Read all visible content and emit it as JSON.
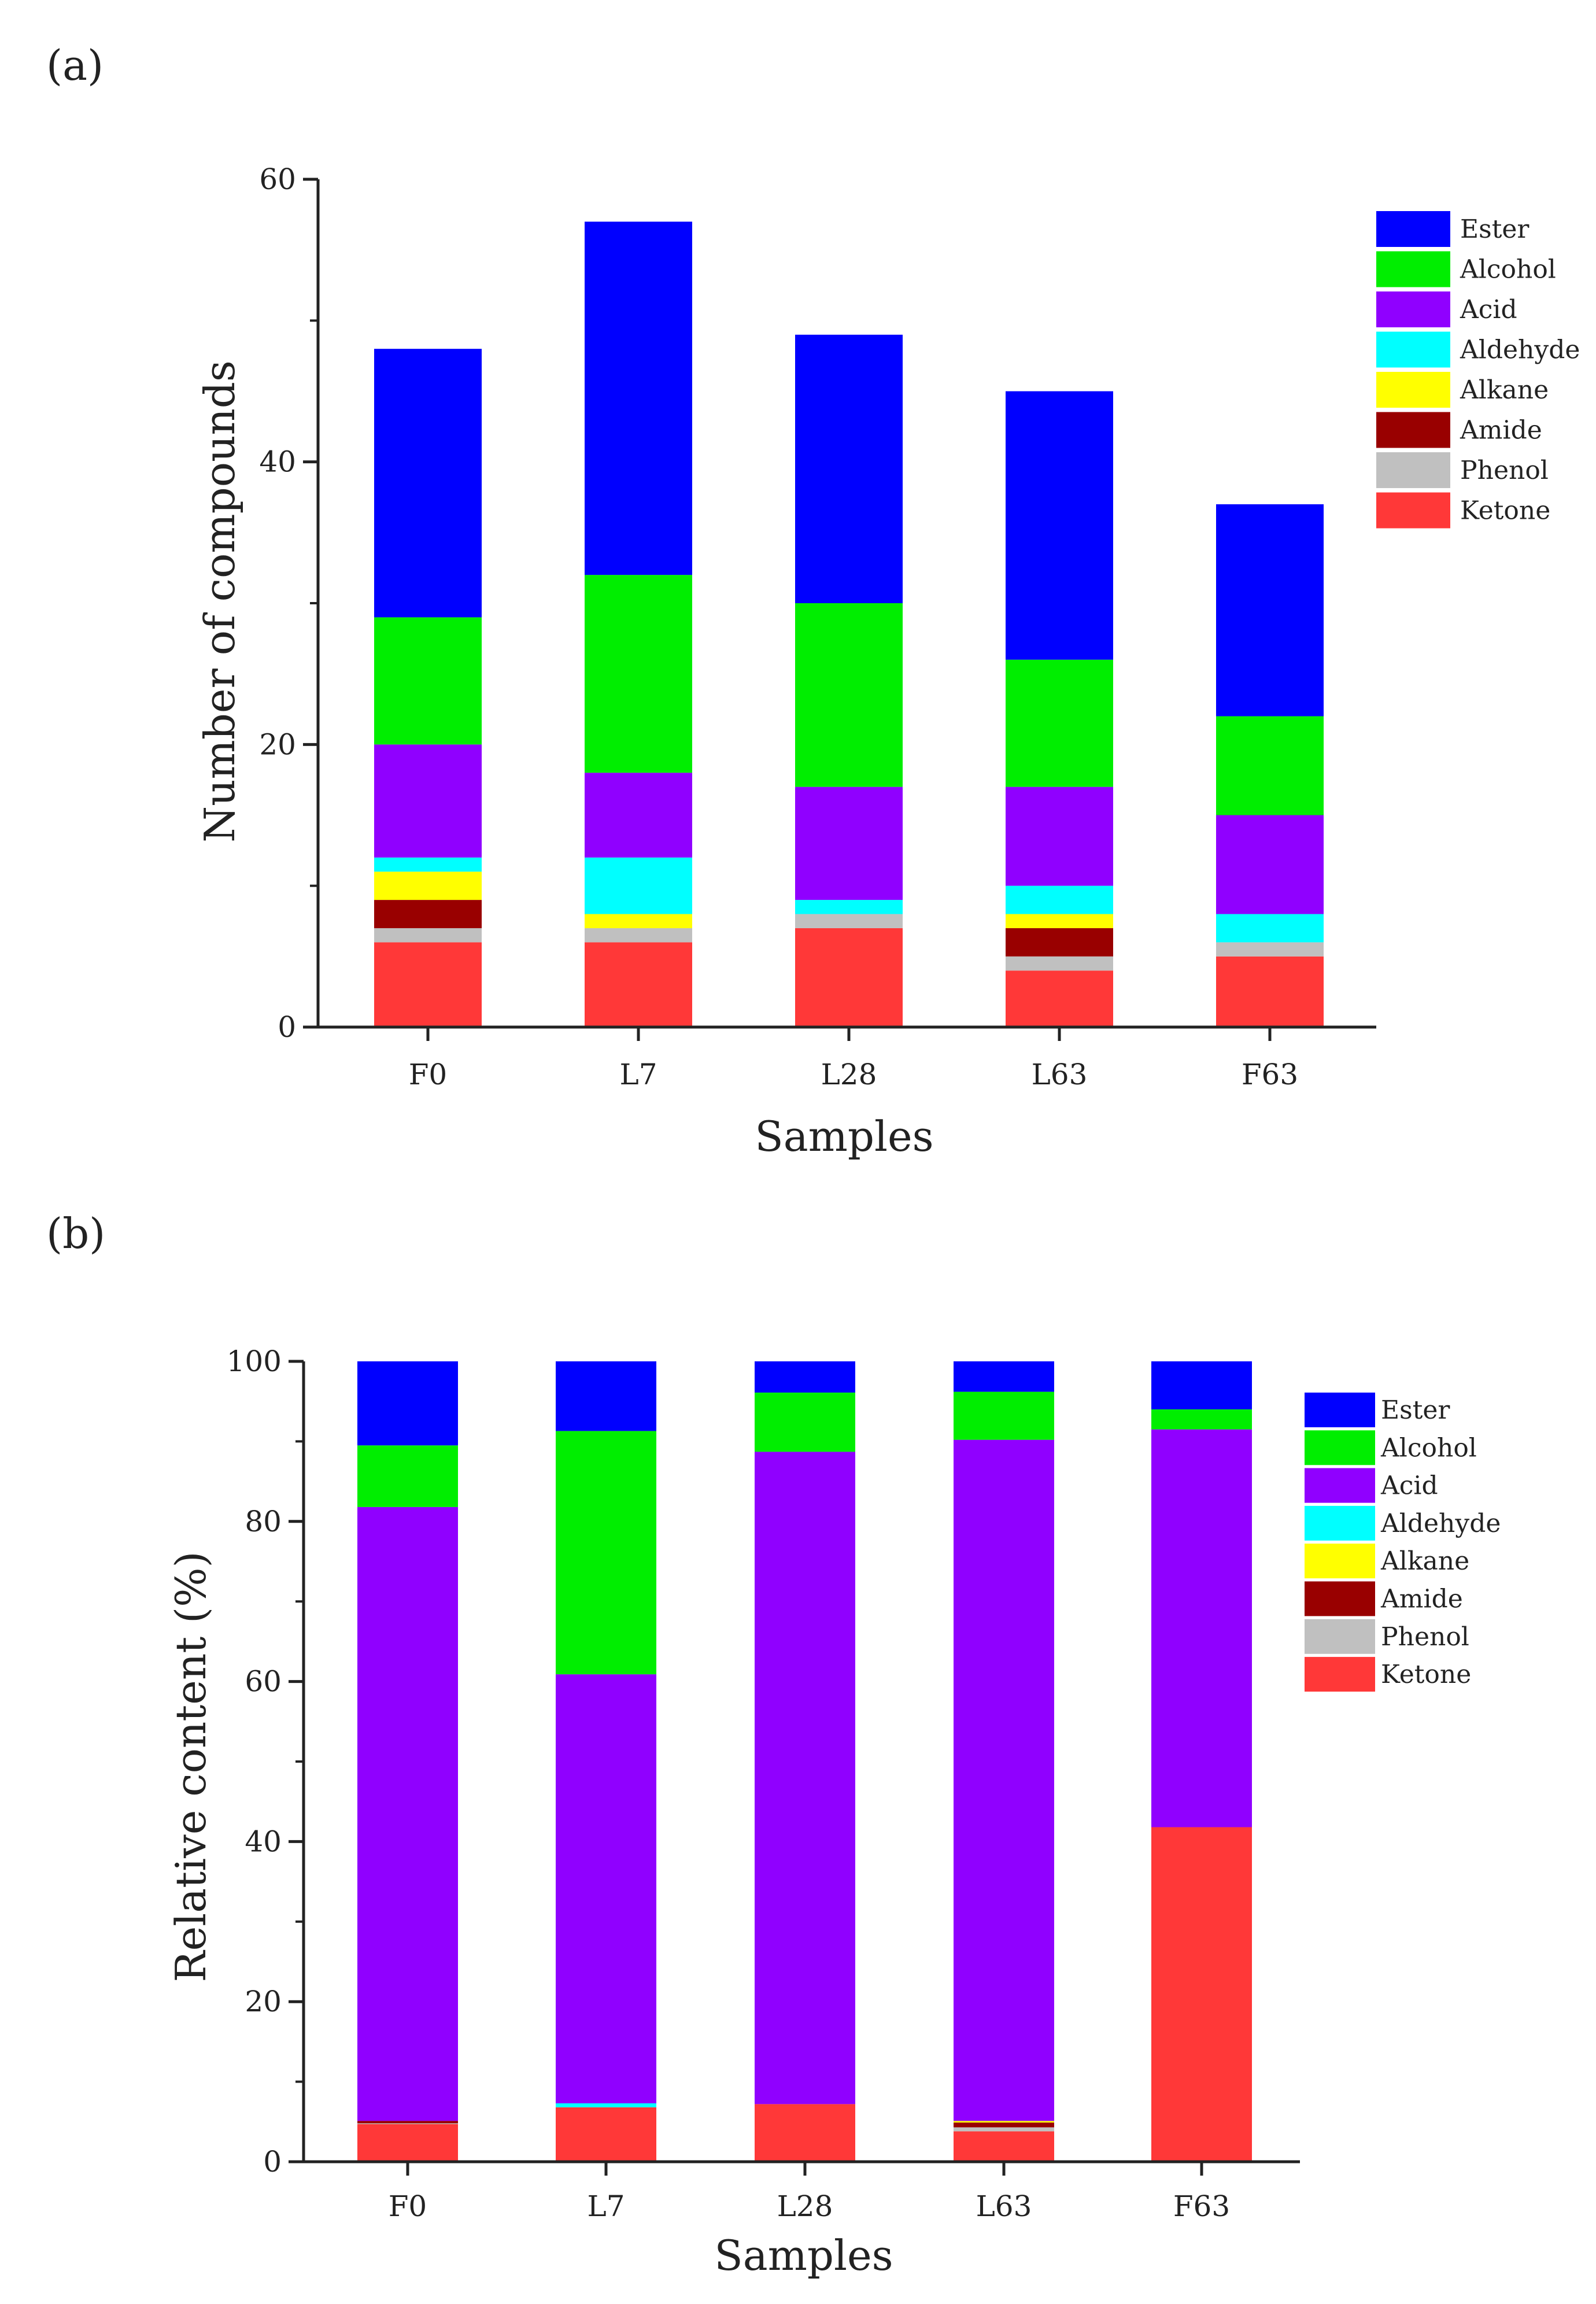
{
  "categories_legend": [
    "Ester",
    "Alcohol",
    "Acid",
    "Aldehyde",
    "Alkane",
    "Amide",
    "Phenol",
    "Ketone"
  ],
  "colors": {
    "Ester": "#0000ff",
    "Alcohol": "#00ee00",
    "Acid": "#9000ff",
    "Aldehyde": "#00ffff",
    "Alkane": "#ffff00",
    "Amide": "#990000",
    "Phenol": "#c0c0c0",
    "Ketone": "#ff3838"
  },
  "chart_data": [
    {
      "panel_label": "(a)",
      "type": "bar",
      "stacked": true,
      "xlabel": "Samples",
      "ylabel": "Number of compounds",
      "ylim": [
        0,
        60
      ],
      "yticks": [
        0,
        20,
        40,
        60
      ],
      "categories": [
        "F0",
        "L7",
        "L28",
        "L63",
        "F63"
      ],
      "legend_position": "top-right",
      "series": [
        {
          "name": "Ketone",
          "values": [
            6,
            6,
            7,
            4,
            5
          ]
        },
        {
          "name": "Phenol",
          "values": [
            1,
            1,
            1,
            1,
            1
          ]
        },
        {
          "name": "Amide",
          "values": [
            2,
            0,
            0,
            2,
            0
          ]
        },
        {
          "name": "Alkane",
          "values": [
            2,
            1,
            0,
            1,
            0
          ]
        },
        {
          "name": "Aldehyde",
          "values": [
            1,
            4,
            1,
            2,
            2
          ]
        },
        {
          "name": "Acid",
          "values": [
            8,
            6,
            8,
            7,
            7
          ]
        },
        {
          "name": "Alcohol",
          "values": [
            9,
            14,
            13,
            9,
            7
          ]
        },
        {
          "name": "Ester",
          "values": [
            19,
            25,
            19,
            19,
            15
          ]
        }
      ]
    },
    {
      "panel_label": "(b)",
      "type": "bar",
      "stacked": true,
      "xlabel": "Samples",
      "ylabel": "Relative content (%)",
      "ylim": [
        0,
        100
      ],
      "yticks": [
        0,
        20,
        40,
        60,
        80,
        100
      ],
      "categories": [
        "F0",
        "L7",
        "L28",
        "L63",
        "F63"
      ],
      "legend_position": "top-right",
      "series": [
        {
          "name": "Ketone",
          "values": [
            4.7,
            6.8,
            7.2,
            3.8,
            41.8
          ]
        },
        {
          "name": "Phenol",
          "values": [
            0.1,
            0,
            0,
            0.5,
            0
          ]
        },
        {
          "name": "Amide",
          "values": [
            0.3,
            0,
            0,
            0.6,
            0
          ]
        },
        {
          "name": "Alkane",
          "values": [
            0,
            0,
            0,
            0.2,
            0
          ]
        },
        {
          "name": "Aldehyde",
          "values": [
            0,
            0.5,
            0,
            0,
            0
          ]
        },
        {
          "name": "Acid",
          "values": [
            76.7,
            53.6,
            81.5,
            85.1,
            49.7
          ]
        },
        {
          "name": "Alcohol",
          "values": [
            7.7,
            30.4,
            7.4,
            6.0,
            2.5
          ]
        },
        {
          "name": "Ester",
          "values": [
            10.5,
            8.7,
            3.9,
            3.8,
            6.0
          ]
        }
      ]
    }
  ]
}
